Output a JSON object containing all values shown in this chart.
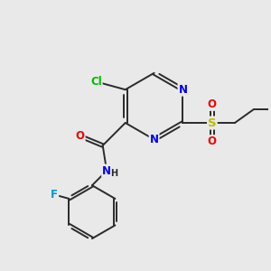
{
  "background_color": "#e9e9e9",
  "bond_color": "#2a2a2a",
  "atom_colors": {
    "N": "#0000ee",
    "O": "#ee0000",
    "S": "#bbbb00",
    "Cl": "#00bb00",
    "F": "#0099cc",
    "C": "#2a2a2a",
    "H": "#2a2a2a"
  },
  "figsize": [
    3.0,
    3.0
  ],
  "dpi": 100
}
